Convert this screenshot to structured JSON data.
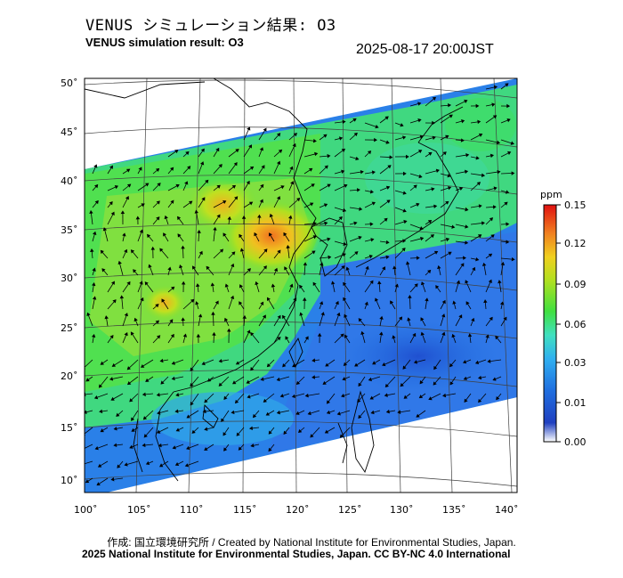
{
  "header": {
    "title_jp": "VENUS シミュレーション結果: O3",
    "title_en": "VENUS simulation result: O3",
    "timestamp": "2025-08-17 20:00JST"
  },
  "footer": {
    "credit_line": "作成: 国立環境研究所 / Created by National Institute for Environmental Studies, Japan.",
    "copyright_line": "2025 National Institute for Environmental Studies, Japan. CC BY-NC 4.0 International"
  },
  "map": {
    "lon_ticks": [
      "100˚",
      "105˚",
      "110˚",
      "115˚",
      "120˚",
      "125˚",
      "130˚",
      "135˚",
      "140˚"
    ],
    "lat_ticks": [
      "50˚",
      "45˚",
      "40˚",
      "35˚",
      "30˚",
      "25˚",
      "20˚",
      "15˚",
      "10˚"
    ],
    "lon_range": [
      100,
      141
    ],
    "lat_range": [
      9,
      50
    ],
    "variable": "O3",
    "overlay": "wind vectors"
  },
  "colorbar": {
    "unit": "ppm",
    "ticks": [
      "0.15",
      "0.12",
      "0.09",
      "0.06",
      "0.03",
      "0.01",
      "0.00"
    ],
    "colors": [
      "#ffffff",
      "#2060d8",
      "#30a0f0",
      "#40d8d0",
      "#40e060",
      "#a0e030",
      "#f0d020",
      "#f08020",
      "#e02010"
    ]
  }
}
